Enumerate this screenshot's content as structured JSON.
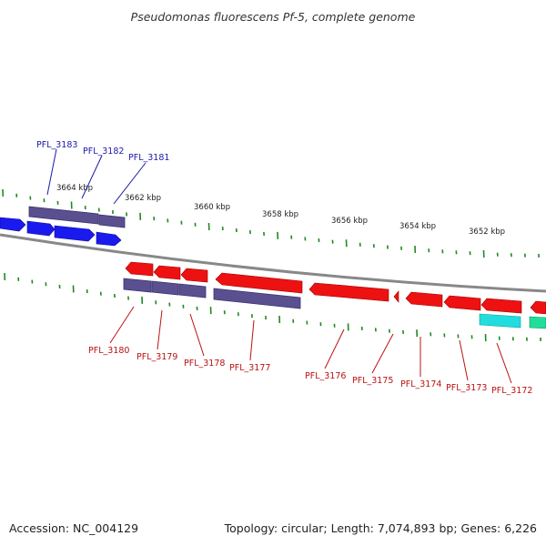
{
  "title": "Pseudomonas fluorescens Pf-5, complete genome",
  "kbp_labels": [
    "3664 kbp",
    "3662 kbp",
    "3660 kbp",
    "3658 kbp",
    "3656 kbp",
    "3654 kbp",
    "3652 kbp"
  ],
  "genes_forward": [
    "PFL_3183",
    "PFL_3182",
    "PFL_3181"
  ],
  "genes_reverse": [
    "PFL_3180",
    "PFL_3179",
    "PFL_3178",
    "PFL_3177",
    "PFL_3176",
    "PFL_3175",
    "PFL_3174",
    "PFL_3173",
    "PFL_3172"
  ],
  "colors": {
    "forward_cds": "#1a1aee",
    "reverse_cds": "#ee1111",
    "gene_bar": "#5a5090",
    "other_feature": "#22dddd",
    "forward_label": "#1a1aaa",
    "reverse_label": "#bb1111",
    "tick": "#1f8a1f",
    "backbone": "#888888"
  },
  "footer": {
    "accession": "Accession: NC_004129",
    "topology": "Topology: circular; Length: 7,074,893 bp; Genes: 6,226"
  }
}
